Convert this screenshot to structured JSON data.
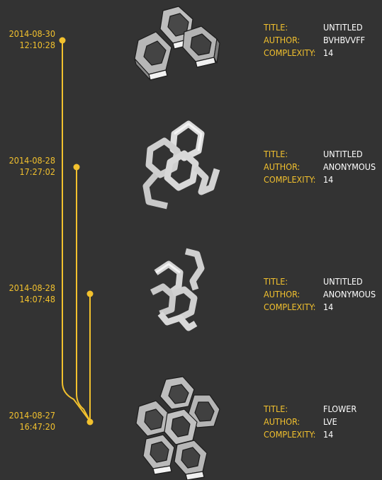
{
  "colors": {
    "background": "#333333",
    "accent": "#f2c12e",
    "value_text": "#ffffff"
  },
  "labels": {
    "title": "TITLE:",
    "author": "AUTHOR:",
    "complexity": "COMPLEXITY:"
  },
  "entries": [
    {
      "date": "2014-08-30",
      "time": "12:10:28",
      "title": "UNTITLED",
      "author": "BVHBVVFF",
      "complexity": "14"
    },
    {
      "date": "2014-08-28",
      "time": "17:27:02",
      "title": "UNTITLED",
      "author": "ANONYMOUS",
      "complexity": "14"
    },
    {
      "date": "2014-08-28",
      "time": "14:07:48",
      "title": "UNTITLED",
      "author": "ANONYMOUS",
      "complexity": "14"
    },
    {
      "date": "2014-08-27",
      "time": "16:47:20",
      "title": "FLOWER",
      "author": "LVE",
      "complexity": "14"
    }
  ]
}
